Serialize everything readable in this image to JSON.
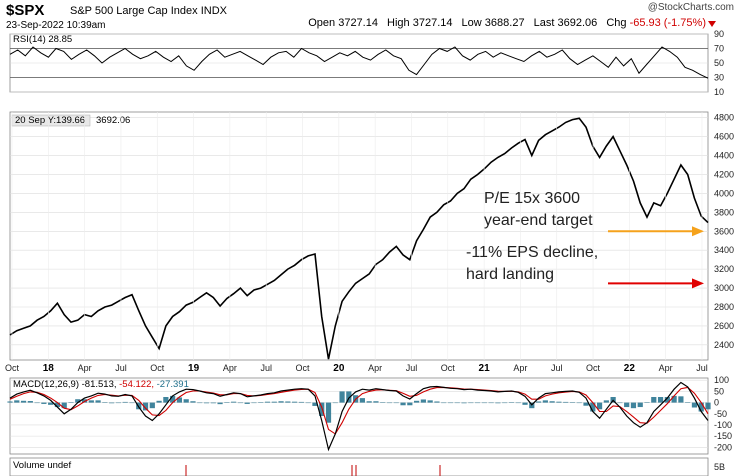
{
  "header": {
    "symbol": "$SPX",
    "name": "S&P 500 Large Cap Index",
    "exchange": "INDX",
    "datetime": "23-Sep-2022 10:39am",
    "brand": "@StockCharts.com",
    "open_label": "Open",
    "open": "3727.14",
    "high_label": "High",
    "high": "3727.14",
    "low_label": "Low",
    "low": "3688.27",
    "last_label": "Last",
    "last": "3692.06",
    "chg_label": "Chg",
    "chg": "-65.93 (-1.75%)"
  },
  "colors": {
    "price": "#000000",
    "rsi": "#000000",
    "macd": "#000000",
    "signal": "#d00000",
    "histogram": "#1f6f8b",
    "orange_arrow": "#f5a21c",
    "red_arrow": "#e00000",
    "grid": "#dcdcdc"
  },
  "chart_data": {
    "type": "line",
    "x_labels": [
      "Oct",
      "18",
      "Apr",
      "Jul",
      "Oct",
      "19",
      "Apr",
      "Jul",
      "Oct",
      "20",
      "Apr",
      "Jul",
      "Oct",
      "21",
      "Apr",
      "Jul",
      "Oct",
      "22",
      "Apr",
      "Jul"
    ],
    "x_bold": [
      "18",
      "19",
      "20",
      "21",
      "22"
    ],
    "rsi": {
      "label": "RSI(14) 28.85",
      "yticks": [
        10,
        30,
        50,
        70,
        90
      ],
      "ylim": [
        10,
        90
      ],
      "overbought": 70,
      "oversold": 30,
      "values": [
        62,
        68,
        60,
        72,
        64,
        58,
        70,
        66,
        55,
        62,
        68,
        60,
        50,
        58,
        64,
        70,
        62,
        56,
        60,
        66,
        58,
        52,
        60,
        46,
        40,
        52,
        62,
        68,
        58,
        62,
        66,
        60,
        54,
        48,
        58,
        64,
        66,
        58,
        70,
        64,
        60,
        52,
        58,
        64,
        60,
        66,
        58,
        54,
        62,
        68,
        60,
        56,
        40,
        34,
        48,
        62,
        70,
        66,
        72,
        60,
        54,
        62,
        66,
        58,
        64,
        60,
        56,
        52,
        60,
        66,
        58,
        62,
        68,
        56,
        48,
        54,
        60,
        52,
        44,
        58,
        46,
        56,
        36,
        48,
        60,
        72,
        66,
        58,
        44,
        40,
        34,
        29
      ]
    },
    "price": {
      "label": "20 Sep Y:139.66",
      "last": "3692.06",
      "yticks": [
        2400,
        2600,
        2800,
        3000,
        3200,
        3400,
        3600,
        3800,
        4000,
        4200,
        4400,
        4600,
        4800
      ],
      "ylim": [
        2240,
        4860
      ],
      "values": [
        2505,
        2550,
        2575,
        2600,
        2660,
        2700,
        2760,
        2840,
        2720,
        2640,
        2660,
        2720,
        2700,
        2760,
        2800,
        2820,
        2860,
        2900,
        2930,
        2760,
        2600,
        2480,
        2360,
        2600,
        2700,
        2750,
        2820,
        2850,
        2900,
        2950,
        2900,
        2810,
        2890,
        2940,
        3000,
        2920,
        2980,
        3000,
        3040,
        3080,
        3140,
        3200,
        3240,
        3300,
        3340,
        3360,
        2700,
        2250,
        2600,
        2860,
        2960,
        3050,
        3100,
        3150,
        3250,
        3300,
        3380,
        3440,
        3350,
        3300,
        3500,
        3620,
        3750,
        3800,
        3880,
        3920,
        4000,
        4050,
        4150,
        4200,
        4260,
        4330,
        4380,
        4420,
        4480,
        4530,
        4570,
        4400,
        4560,
        4620,
        4660,
        4700,
        4750,
        4780,
        4793,
        4700,
        4500,
        4380,
        4500,
        4600,
        4450,
        4300,
        4130,
        3900,
        3750,
        3900,
        3870,
        4000,
        4150,
        4300,
        4200,
        3950,
        3760,
        3692
      ]
    },
    "macd": {
      "label": "MACD(12,26,9)",
      "macd_value": "-81.513",
      "signal_value": "-54.122",
      "hist_value": "-27.391",
      "yticks": [
        100,
        50,
        0,
        -50,
        -100,
        -150,
        -200
      ],
      "ylim": [
        -230,
        110
      ],
      "macd_values": [
        20,
        38,
        48,
        55,
        44,
        30,
        10,
        -20,
        -50,
        -30,
        0,
        20,
        30,
        42,
        38,
        30,
        28,
        36,
        30,
        -20,
        -60,
        -80,
        -50,
        -10,
        30,
        48,
        60,
        58,
        52,
        44,
        40,
        28,
        36,
        44,
        40,
        26,
        30,
        34,
        40,
        44,
        52,
        56,
        60,
        62,
        60,
        30,
        -80,
        -210,
        -140,
        -40,
        20,
        48,
        60,
        56,
        62,
        58,
        54,
        52,
        30,
        16,
        40,
        62,
        70,
        72,
        68,
        64,
        62,
        58,
        60,
        56,
        54,
        52,
        48,
        50,
        52,
        46,
        28,
        -10,
        20,
        40,
        44,
        48,
        50,
        52,
        46,
        20,
        -40,
        -70,
        -30,
        10,
        -20,
        -60,
        -90,
        -110,
        -90,
        -40,
        -10,
        20,
        60,
        90,
        70,
        20,
        -40,
        -80
      ],
      "signal_values": [
        15,
        28,
        40,
        48,
        46,
        36,
        20,
        0,
        -25,
        -32,
        -15,
        5,
        20,
        32,
        36,
        33,
        30,
        33,
        32,
        10,
        -25,
        -55,
        -58,
        -35,
        0,
        25,
        45,
        52,
        52,
        47,
        43,
        35,
        35,
        40,
        40,
        32,
        30,
        32,
        36,
        40,
        46,
        51,
        56,
        59,
        60,
        45,
        -20,
        -120,
        -140,
        -90,
        -30,
        15,
        40,
        50,
        56,
        57,
        55,
        53,
        42,
        28,
        32,
        48,
        60,
        67,
        68,
        66,
        64,
        61,
        60,
        58,
        56,
        54,
        51,
        50,
        51,
        48,
        38,
        15,
        15,
        30,
        38,
        44,
        47,
        50,
        48,
        34,
        0,
        -40,
        -40,
        -15,
        -18,
        -40,
        -65,
        -90,
        -92,
        -65,
        -35,
        -5,
        30,
        62,
        68,
        42,
        0,
        -50
      ]
    },
    "volume": {
      "label": "Volume undef",
      "ytick": "5B"
    }
  },
  "annotations": {
    "pe_line1": "P/E 15x 3600",
    "pe_line2": "year-end target",
    "eps_line1": "-11% EPS decline,",
    "eps_line2": "hard landing",
    "orange_target": 3600,
    "red_target": 3050
  }
}
